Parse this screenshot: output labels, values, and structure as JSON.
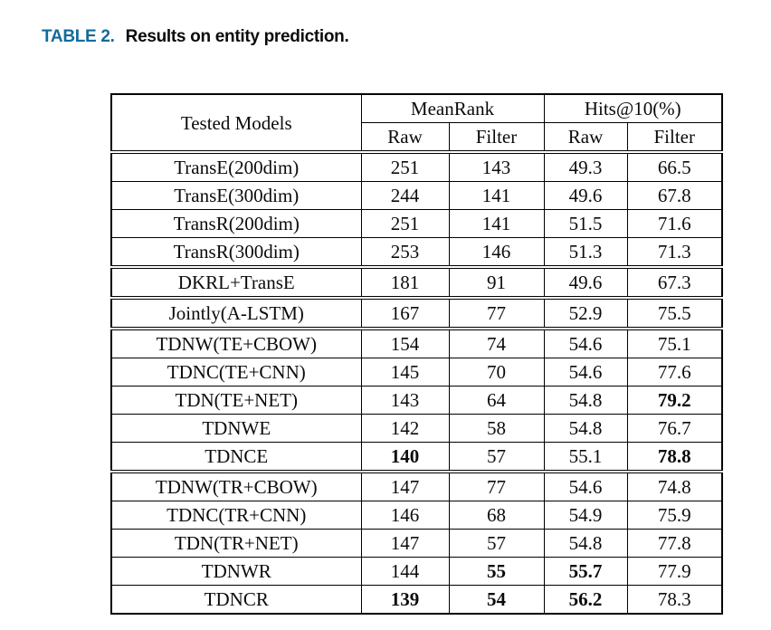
{
  "caption": {
    "label": "TABLE 2.",
    "text": "Results on entity prediction.",
    "accent_color": "#116c99"
  },
  "table": {
    "corner_header": "Tested Models",
    "column_groups": [
      "MeanRank",
      "Hits@10(%)"
    ],
    "sub_headers": [
      "Raw",
      "Filter",
      "Raw",
      "Filter"
    ],
    "groups": [
      {
        "rows": [
          {
            "model": "TransE(200dim)",
            "values": [
              "251",
              "143",
              "49.3",
              "66.5"
            ],
            "bold": [
              false,
              false,
              false,
              false
            ]
          },
          {
            "model": "TransE(300dim)",
            "values": [
              "244",
              "141",
              "49.6",
              "67.8"
            ],
            "bold": [
              false,
              false,
              false,
              false
            ]
          },
          {
            "model": "TransR(200dim)",
            "values": [
              "251",
              "141",
              "51.5",
              "71.6"
            ],
            "bold": [
              false,
              false,
              false,
              false
            ]
          },
          {
            "model": "TransR(300dim)",
            "values": [
              "253",
              "146",
              "51.3",
              "71.3"
            ],
            "bold": [
              false,
              false,
              false,
              false
            ]
          }
        ]
      },
      {
        "rows": [
          {
            "model": "DKRL+TransE",
            "values": [
              "181",
              "91",
              "49.6",
              "67.3"
            ],
            "bold": [
              false,
              false,
              false,
              false
            ]
          }
        ]
      },
      {
        "rows": [
          {
            "model": "Jointly(A-LSTM)",
            "values": [
              "167",
              "77",
              "52.9",
              "75.5"
            ],
            "bold": [
              false,
              false,
              false,
              false
            ]
          }
        ]
      },
      {
        "rows": [
          {
            "model": "TDNW(TE+CBOW)",
            "values": [
              "154",
              "74",
              "54.6",
              "75.1"
            ],
            "bold": [
              false,
              false,
              false,
              false
            ]
          },
          {
            "model": "TDNC(TE+CNN)",
            "values": [
              "145",
              "70",
              "54.6",
              "77.6"
            ],
            "bold": [
              false,
              false,
              false,
              false
            ]
          },
          {
            "model": "TDN(TE+NET)",
            "values": [
              "143",
              "64",
              "54.8",
              "79.2"
            ],
            "bold": [
              false,
              false,
              false,
              true
            ]
          },
          {
            "model": "TDNWE",
            "values": [
              "142",
              "58",
              "54.8",
              "76.7"
            ],
            "bold": [
              false,
              false,
              false,
              false
            ]
          },
          {
            "model": "TDNCE",
            "values": [
              "140",
              "57",
              "55.1",
              "78.8"
            ],
            "bold": [
              true,
              false,
              false,
              true
            ]
          }
        ]
      },
      {
        "rows": [
          {
            "model": "TDNW(TR+CBOW)",
            "values": [
              "147",
              "77",
              "54.6",
              "74.8"
            ],
            "bold": [
              false,
              false,
              false,
              false
            ]
          },
          {
            "model": "TDNC(TR+CNN)",
            "values": [
              "146",
              "68",
              "54.9",
              "75.9"
            ],
            "bold": [
              false,
              false,
              false,
              false
            ]
          },
          {
            "model": "TDN(TR+NET)",
            "values": [
              "147",
              "57",
              "54.8",
              "77.8"
            ],
            "bold": [
              false,
              false,
              false,
              false
            ]
          },
          {
            "model": "TDNWR",
            "values": [
              "144",
              "55",
              "55.7",
              "77.9"
            ],
            "bold": [
              false,
              true,
              true,
              false
            ]
          },
          {
            "model": "TDNCR",
            "values": [
              "139",
              "54",
              "56.2",
              "78.3"
            ],
            "bold": [
              true,
              true,
              true,
              false
            ]
          }
        ]
      }
    ]
  }
}
